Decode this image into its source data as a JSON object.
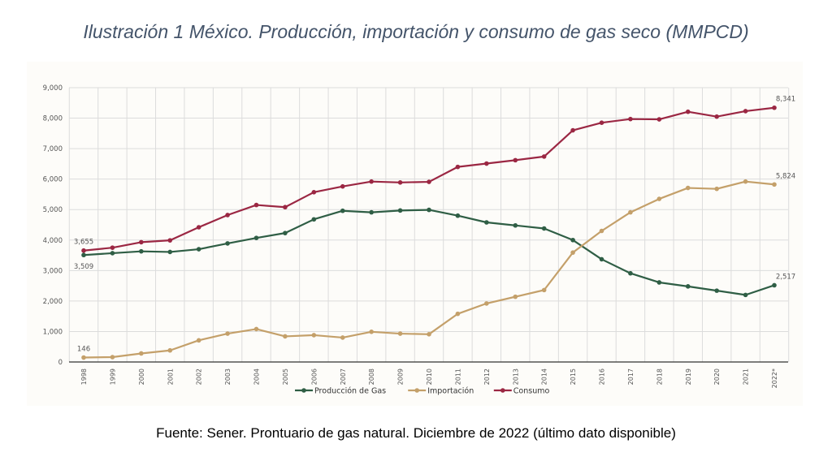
{
  "title": "Ilustración 1 México. Producción, importación y consumo de gas seco (MMPCD)",
  "source": "Fuente: Sener. Prontuario de gas natural. Diciembre de 2022 (último dato disponible)",
  "chart_data": {
    "type": "line",
    "title": "",
    "xlabel": "",
    "ylabel": "",
    "ylim": [
      0,
      9000
    ],
    "yticks": [
      0,
      1000,
      2000,
      3000,
      4000,
      5000,
      6000,
      7000,
      8000,
      9000
    ],
    "ytick_labels": [
      "0",
      "1,000",
      "2,000",
      "3,000",
      "4,000",
      "5,000",
      "6,000",
      "7,000",
      "8,000",
      "9,000"
    ],
    "grid": true,
    "legend": "bottom",
    "categories": [
      "1998",
      "1999",
      "2000",
      "2001",
      "2002",
      "2003",
      "2004",
      "2005",
      "2006",
      "2007",
      "2008",
      "2009",
      "2010",
      "2011",
      "2012",
      "2013",
      "2014",
      "2015",
      "2016",
      "2017",
      "2018",
      "2019",
      "2020",
      "2021",
      "2022*"
    ],
    "series": [
      {
        "name": "Producción de Gas",
        "color": "#2f5e45",
        "values": [
          3509,
          3570,
          3630,
          3610,
          3700,
          3890,
          4070,
          4230,
          4680,
          4960,
          4910,
          4970,
          4990,
          4800,
          4580,
          4480,
          4380,
          4000,
          3370,
          2910,
          2610,
          2480,
          2340,
          2200,
          2517
        ],
        "labels": {
          "0": "3,509",
          "24": "2,517"
        }
      },
      {
        "name": "Importación",
        "color": "#c4a06a",
        "values": [
          146,
          160,
          280,
          380,
          710,
          930,
          1080,
          840,
          880,
          800,
          990,
          930,
          910,
          1580,
          1920,
          2140,
          2360,
          3590,
          4300,
          4910,
          5350,
          5710,
          5680,
          5920,
          5824
        ],
        "labels": {
          "0": "146",
          "24": "5,824"
        }
      },
      {
        "name": "Consumo",
        "color": "#9b2743",
        "values": [
          3655,
          3750,
          3930,
          3990,
          4420,
          4820,
          5150,
          5080,
          5570,
          5760,
          5920,
          5890,
          5910,
          6400,
          6510,
          6620,
          6740,
          7600,
          7850,
          7970,
          7960,
          8210,
          8050,
          8230,
          8341
        ],
        "labels": {
          "0": "3,655",
          "24": "8,341"
        }
      }
    ]
  }
}
